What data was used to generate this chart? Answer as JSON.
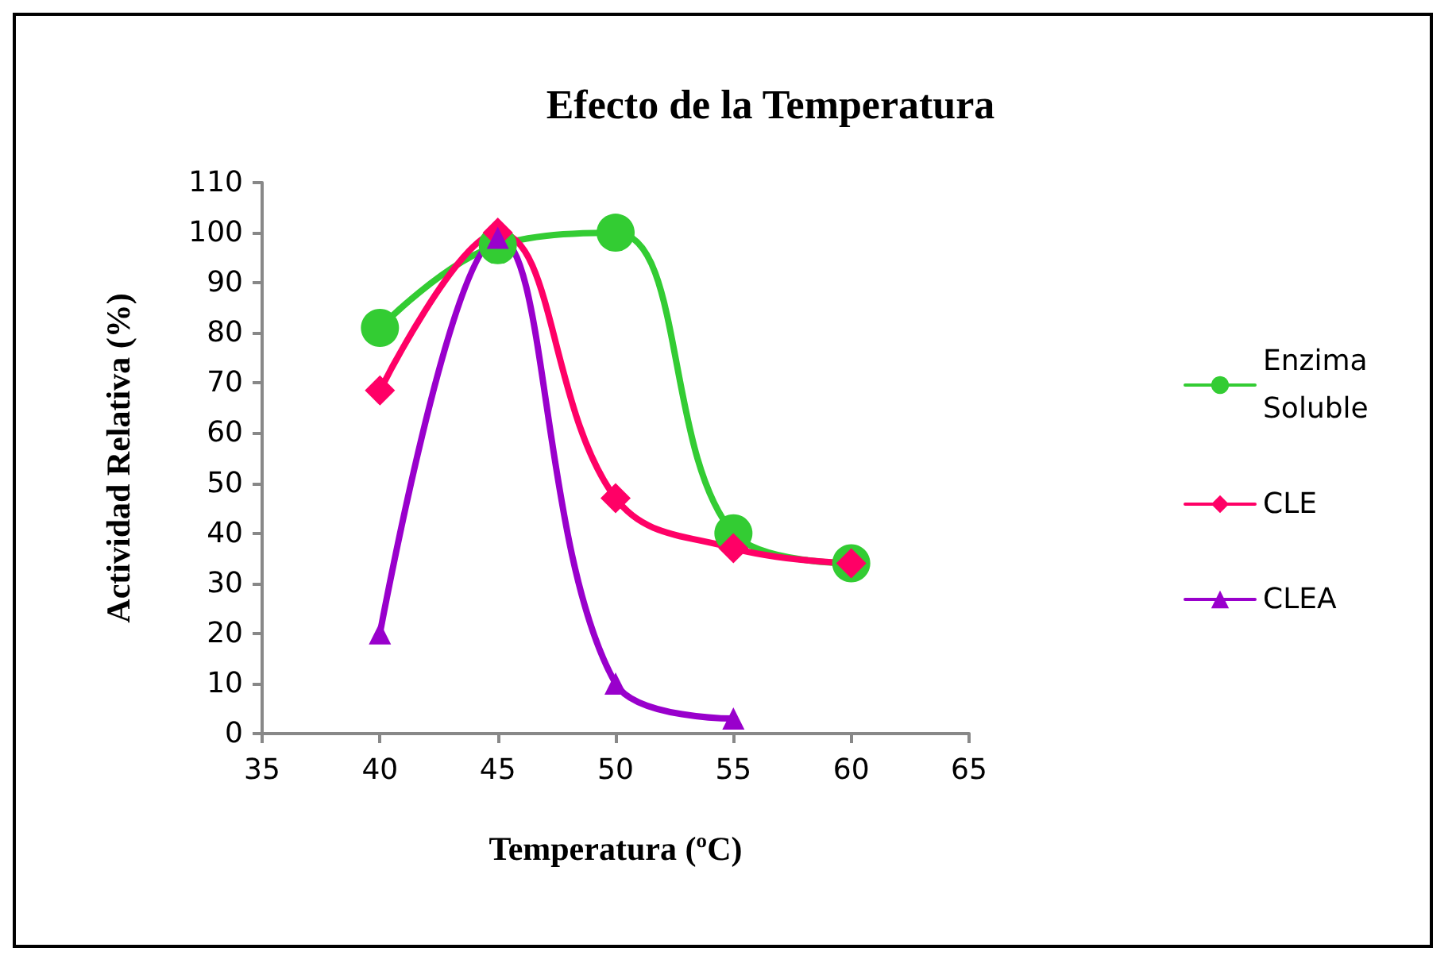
{
  "chart_data": {
    "type": "line",
    "title": "Efecto de la Temperatura",
    "xlabel": "Temperatura (ºC)",
    "ylabel": "Actividad Relativa (%)",
    "x": [
      40,
      45,
      50,
      55,
      60
    ],
    "series": [
      {
        "name": "Enzima Soluble",
        "color": "#33cc33",
        "marker": "circle",
        "values": [
          81,
          97.5,
          100,
          40,
          34
        ]
      },
      {
        "name": "CLE",
        "color": "#ff0066",
        "marker": "diamond",
        "values": [
          68.5,
          100,
          47,
          37,
          34
        ]
      },
      {
        "name": "CLEA",
        "color": "#9900cc",
        "marker": "triangle",
        "values": [
          20,
          99,
          10,
          3,
          null
        ]
      }
    ],
    "xlim": [
      35,
      65
    ],
    "xticks": [
      35,
      40,
      45,
      50,
      55,
      60,
      65
    ],
    "ylim": [
      0,
      110
    ],
    "yticks": [
      0,
      10,
      20,
      30,
      40,
      50,
      60,
      70,
      80,
      90,
      100,
      110
    ],
    "grid": false,
    "legend": "right",
    "line_style": "solid"
  }
}
